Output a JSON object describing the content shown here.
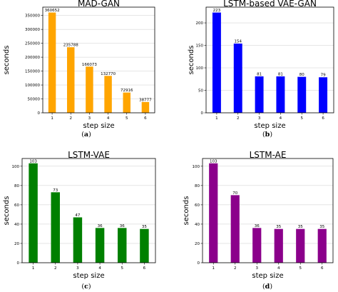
{
  "chart_data": [
    {
      "type": "bar",
      "title": "MAD-GAN",
      "xlabel": "step size",
      "ylabel": "seconds",
      "categories": [
        "1",
        "2",
        "3",
        "4",
        "5",
        "6"
      ],
      "values": [
        360652,
        235788,
        166073,
        132770,
        72916,
        38777
      ],
      "data_labels": [
        "360652",
        "235788",
        "166073",
        "132770",
        "72916",
        "38777"
      ],
      "yticks": [
        "0",
        "50000",
        "100000",
        "150000",
        "200000",
        "250000",
        "300000",
        "350000"
      ],
      "ylim": [
        0,
        380000
      ],
      "ytick_step": 50000,
      "color": "#FFA500",
      "grid": true,
      "caption": "a"
    },
    {
      "type": "bar",
      "title": "LSTM-based VAE-GAN",
      "xlabel": "step size",
      "ylabel": "seconds",
      "categories": [
        "1",
        "2",
        "3",
        "4",
        "5",
        "6"
      ],
      "values": [
        223,
        154,
        81,
        81,
        80,
        79
      ],
      "data_labels": [
        "223",
        "154",
        "81",
        "81",
        "80",
        "79"
      ],
      "yticks": [
        "0",
        "50",
        "100",
        "150",
        "200"
      ],
      "ylim": [
        0,
        235
      ],
      "ytick_step": 50,
      "color": "#0000FF",
      "grid": true,
      "caption": "b"
    },
    {
      "type": "bar",
      "title": "LSTM-VAE",
      "xlabel": "step size",
      "ylabel": "seconds",
      "categories": [
        "1",
        "2",
        "3",
        "4",
        "5",
        "6"
      ],
      "values": [
        103,
        73,
        47,
        36,
        36,
        35
      ],
      "data_labels": [
        "103",
        "73",
        "47",
        "36",
        "36",
        "35"
      ],
      "yticks": [
        "0",
        "20",
        "40",
        "60",
        "80",
        "100"
      ],
      "ylim": [
        0,
        108
      ],
      "ytick_step": 20,
      "color": "#008000",
      "grid": true,
      "caption": "c"
    },
    {
      "type": "bar",
      "title": "LSTM-AE",
      "xlabel": "step size",
      "ylabel": "seconds",
      "categories": [
        "1",
        "2",
        "3",
        "4",
        "5",
        "6"
      ],
      "values": [
        103,
        70,
        36,
        35,
        35,
        35
      ],
      "data_labels": [
        "103",
        "70",
        "36",
        "35",
        "35",
        "35"
      ],
      "yticks": [
        "0",
        "20",
        "40",
        "60",
        "80",
        "100"
      ],
      "ylim": [
        0,
        108
      ],
      "ytick_step": 20,
      "color": "#8B008B",
      "grid": true,
      "caption": "d"
    }
  ]
}
